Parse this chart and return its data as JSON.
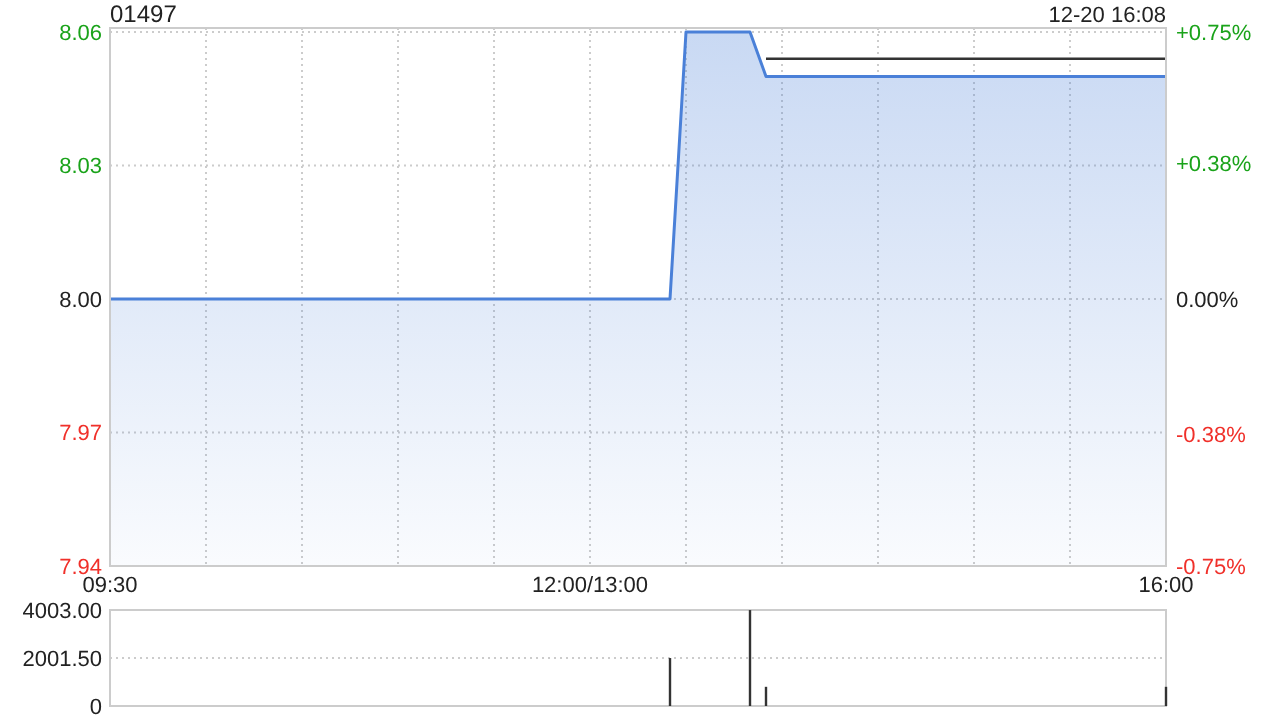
{
  "chart_data": [
    {
      "type": "area",
      "title": "01497",
      "subtitle": "12-20 16:08",
      "categories": [
        "09:30",
        null,
        null,
        null,
        null,
        null,
        null,
        null,
        null,
        null,
        null,
        null,
        null,
        null,
        null,
        null,
        null,
        null,
        null,
        null,
        null,
        null,
        null,
        null,
        null,
        null,
        null,
        null,
        null,
        null,
        "12:00/13:00",
        null,
        null,
        null,
        null,
        null,
        null,
        null,
        null,
        null,
        null,
        null,
        null,
        null,
        null,
        null,
        null,
        null,
        null,
        null,
        null,
        null,
        null,
        null,
        null,
        null,
        null,
        null,
        null,
        null,
        null,
        null,
        null,
        null,
        null,
        null,
        "16:00"
      ],
      "ylim": [
        7.94,
        8.06
      ],
      "yticks": [
        7.94,
        7.97,
        {
          "value": 8.0,
          "label": "8.00"
        },
        8.03,
        8.06
      ],
      "y2lim": [
        -0.75,
        0.75
      ],
      "y2ticks": [
        {
          "value": -0.75,
          "label": "-0.75%"
        },
        {
          "value": -0.38,
          "label": "-0.38%"
        },
        {
          "value": 0,
          "label": "0.00%"
        },
        {
          "value": 0.38,
          "label": "+0.38%"
        },
        {
          "value": 0.75,
          "label": "+0.75%"
        }
      ],
      "grid": true,
      "series": [
        {
          "type": "line",
          "color": "#333333",
          "values": [
            null,
            null,
            null,
            null,
            null,
            null,
            null,
            null,
            null,
            null,
            null,
            null,
            null,
            null,
            null,
            null,
            null,
            null,
            null,
            null,
            null,
            null,
            null,
            null,
            null,
            null,
            null,
            null,
            null,
            null,
            null,
            null,
            null,
            null,
            null,
            null,
            null,
            null,
            null,
            null,
            null,
            8.054,
            8.054,
            8.054,
            8.054,
            8.054,
            8.054,
            8.054,
            8.054,
            8.054,
            8.054,
            8.054,
            8.054,
            8.054,
            8.054,
            8.054,
            8.054,
            8.054,
            8.054,
            8.054,
            8.054,
            8.054,
            8.054,
            8.054,
            8.054,
            8.054,
            8.054
          ]
        },
        {
          "type": "area",
          "color": "#4a80d8",
          "values": [
            8.0,
            8.0,
            8.0,
            8.0,
            8.0,
            8.0,
            8.0,
            8.0,
            8.0,
            8.0,
            8.0,
            8.0,
            8.0,
            8.0,
            8.0,
            8.0,
            8.0,
            8.0,
            8.0,
            8.0,
            8.0,
            8.0,
            8.0,
            8.0,
            8.0,
            8.0,
            8.0,
            8.0,
            8.0,
            8.0,
            8.0,
            8.0,
            8.0,
            8.0,
            8.0,
            8.0,
            8.06,
            8.06,
            8.06,
            8.06,
            8.06,
            8.05,
            8.05,
            8.05,
            8.05,
            8.05,
            8.05,
            8.05,
            8.05,
            8.05,
            8.05,
            8.05,
            8.05,
            8.05,
            8.05,
            8.05,
            8.05,
            8.05,
            8.05,
            8.05,
            8.05,
            8.05,
            8.05,
            8.05,
            8.05,
            8.05,
            8.05
          ]
        }
      ]
    },
    {
      "type": "bar",
      "tick_labels": "y",
      "grid": "y",
      "color": "#333333",
      "categories": [
        null,
        null,
        null,
        null,
        null,
        null,
        null,
        null,
        null,
        null,
        null,
        null,
        null,
        null,
        null,
        null,
        null,
        null,
        null,
        null,
        null,
        null,
        null,
        null,
        null,
        null,
        null,
        null,
        null,
        null,
        null,
        null,
        null,
        null,
        null,
        null,
        null,
        null,
        null,
        null,
        null,
        null,
        null,
        null,
        null,
        null,
        null,
        null,
        null,
        null,
        null,
        null,
        null,
        null,
        null,
        null,
        null,
        null,
        null,
        null,
        null,
        null,
        null,
        null,
        null,
        null,
        null
      ],
      "ylim": [
        0,
        4003
      ],
      "yticks": [
        0,
        {
          "value": 2001.5,
          "label": "2001.50"
        },
        {
          "value": 4003,
          "label": "4003.00"
        }
      ],
      "values": [
        null,
        null,
        null,
        null,
        null,
        null,
        null,
        null,
        null,
        null,
        null,
        null,
        null,
        null,
        null,
        null,
        null,
        null,
        null,
        null,
        null,
        null,
        null,
        null,
        null,
        null,
        null,
        null,
        null,
        null,
        null,
        null,
        null,
        null,
        null,
        2000,
        null,
        null,
        null,
        null,
        4000,
        800,
        null,
        null,
        null,
        null,
        null,
        null,
        null,
        null,
        null,
        null,
        null,
        null,
        null,
        null,
        null,
        null,
        null,
        null,
        null,
        null,
        null,
        null,
        null,
        null,
        800
      ]
    }
  ]
}
